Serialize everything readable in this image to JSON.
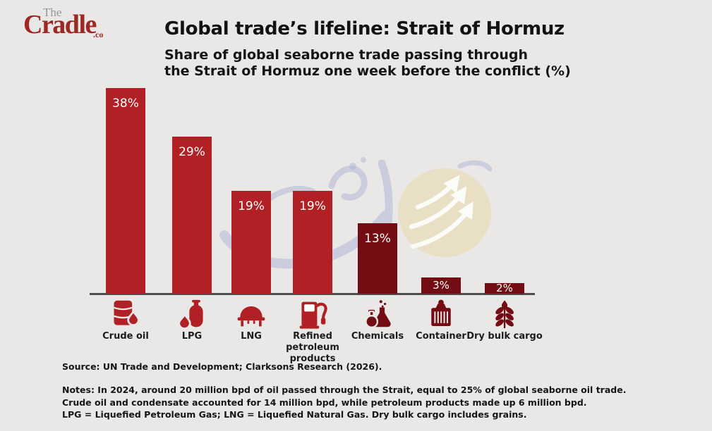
{
  "logo": {
    "the": "The",
    "cradle": "Cradle",
    "suffix": ".co"
  },
  "header": {
    "title": "Global trade’s lifeline: Strait of Hormuz",
    "subtitle": "Share of global seaborne trade passing through\nthe Strait of Hormuz one week before the conflict (%)"
  },
  "chart_data": {
    "type": "bar",
    "title": "Global trade’s lifeline: Strait of Hormuz",
    "subtitle": "Share of global seaborne trade passing through the Strait of Hormuz one week before the conflict (%)",
    "unit": "%",
    "ylim": [
      0,
      40
    ],
    "grid": false,
    "categories": [
      "Crude oil",
      "LPG",
      "LNG",
      "Refined petroleum products",
      "Chemicals",
      "Container",
      "Dry bulk cargo"
    ],
    "values": [
      38,
      29,
      19,
      19,
      13,
      3,
      2
    ],
    "value_labels": [
      "38%",
      "29%",
      "19%",
      "19%",
      "13%",
      "3%",
      "2%"
    ],
    "display_labels": [
      "Crude oil",
      "LPG",
      "LNG",
      "Refined\npetroleum products",
      "Chemicals",
      "Container",
      "Dry bulk cargo"
    ],
    "bar_colors": [
      "#b12024",
      "#b12024",
      "#b12024",
      "#b12024",
      "#730d13",
      "#730d13",
      "#730d13"
    ],
    "icons": [
      "oil-barrel-icon",
      "lpg-cylinder-icon",
      "lng-tank-icon",
      "fuel-pump-icon",
      "chemical-flask-icon",
      "shipping-container-icon",
      "wheat-icon"
    ]
  },
  "footer": {
    "source": "Source: UN Trade and Development; Clarksons Research (2026).",
    "notes": "Notes: In 2024, around 20 million bpd of oil passed through the Strait, equal to 25% of global seaborne oil trade.\nCrude oil and condensate accounted for 14 million bpd, while petroleum products made up 6 million bpd.\nLPG = Liquefied Petroleum Gas; LNG = Liquefied Natural Gas. Dry bulk cargo includes grains."
  },
  "colors": {
    "background": "#e9e8e7",
    "bright_red": "#b12024",
    "dark_maroon": "#730d13",
    "axis": "#4d4d4d",
    "logo_red": "#9c2a22",
    "logo_gray": "#90989c",
    "watermark_beige": "#e9dcbd",
    "watermark_lavender": "#b4b6d6"
  }
}
